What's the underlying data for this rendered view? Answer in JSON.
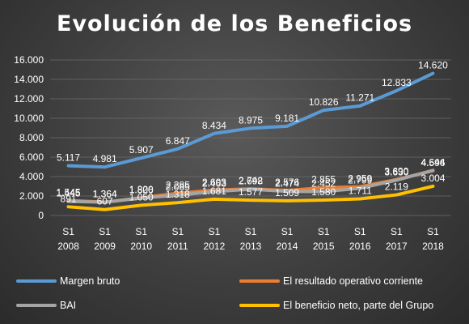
{
  "chart_data": {
    "type": "line",
    "title": "Evolución de los Beneficios",
    "categories": [
      {
        "line1": "S1",
        "line2": "2008"
      },
      {
        "line1": "S1",
        "line2": "2009"
      },
      {
        "line1": "S1",
        "line2": "2010"
      },
      {
        "line1": "S1",
        "line2": "2011"
      },
      {
        "line1": "S1",
        "line2": "2012"
      },
      {
        "line1": "S1",
        "line2": "2013"
      },
      {
        "line1": "S1",
        "line2": "2014"
      },
      {
        "line1": "S1",
        "line2": "2015"
      },
      {
        "line1": "S1",
        "line2": "2016"
      },
      {
        "line1": "S1",
        "line2": "2017"
      },
      {
        "line1": "S1",
        "line2": "2018"
      }
    ],
    "ylim": [
      0,
      16000
    ],
    "y_ticks": [
      {
        "value": 0,
        "label": "0"
      },
      {
        "value": 2000,
        "label": "2.000"
      },
      {
        "value": 4000,
        "label": "4.000"
      },
      {
        "value": 6000,
        "label": "6.000"
      },
      {
        "value": 8000,
        "label": "8.000"
      },
      {
        "value": 10000,
        "label": "10.000"
      },
      {
        "value": 12000,
        "label": "12.000"
      },
      {
        "value": 14000,
        "label": "14.000"
      },
      {
        "value": 16000,
        "label": "16.000"
      }
    ],
    "grid": true,
    "legend_position": "bottom",
    "series": [
      {
        "name": "Margen bruto",
        "color": "#5b9bd5",
        "values": [
          5117,
          4981,
          5907,
          6847,
          8434,
          8975,
          9181,
          10826,
          11271,
          12833,
          14620
        ],
        "labels": [
          "5.117",
          "4.981",
          "5.907",
          "6.847",
          "8.434",
          "8.975",
          "9.181",
          "10.826",
          "11.271",
          "12.833",
          "14.620"
        ]
      },
      {
        "name": "El resultado operativo corriente",
        "color": "#ed7d31",
        "values": [
          1545,
          1364,
          1820,
          2285,
          2603,
          2742,
          2576,
          2855,
          2959,
          3690,
          4596
        ],
        "labels": [
          "1.545",
          "1.364",
          "1.820",
          "2.285",
          "2.603",
          "2.742",
          "2.576",
          "2.855",
          "2.959",
          "3.690",
          "4.596"
        ]
      },
      {
        "name": "BAI",
        "color": "#a5a5a5",
        "values": [
          1445,
          1364,
          1806,
          2085,
          2463,
          2698,
          2474,
          2452,
          2799,
          3630,
          4644
        ],
        "labels": [
          "1.445",
          "1.364",
          "1.806",
          "2.085",
          "2.463",
          "2.698",
          "2.474",
          "2.452",
          "2.799",
          "3.630",
          "4.644"
        ]
      },
      {
        "name": "El beneficio neto, parte del Grupo",
        "color": "#ffc000",
        "values": [
          891,
          607,
          1050,
          1318,
          1681,
          1577,
          1509,
          1580,
          1711,
          2119,
          3004
        ],
        "labels": [
          "891",
          "607",
          "1.050",
          "1.318",
          "1.681",
          "1.577",
          "1.509",
          "1.580",
          "1.711",
          "2.119",
          "3.004"
        ]
      }
    ]
  }
}
